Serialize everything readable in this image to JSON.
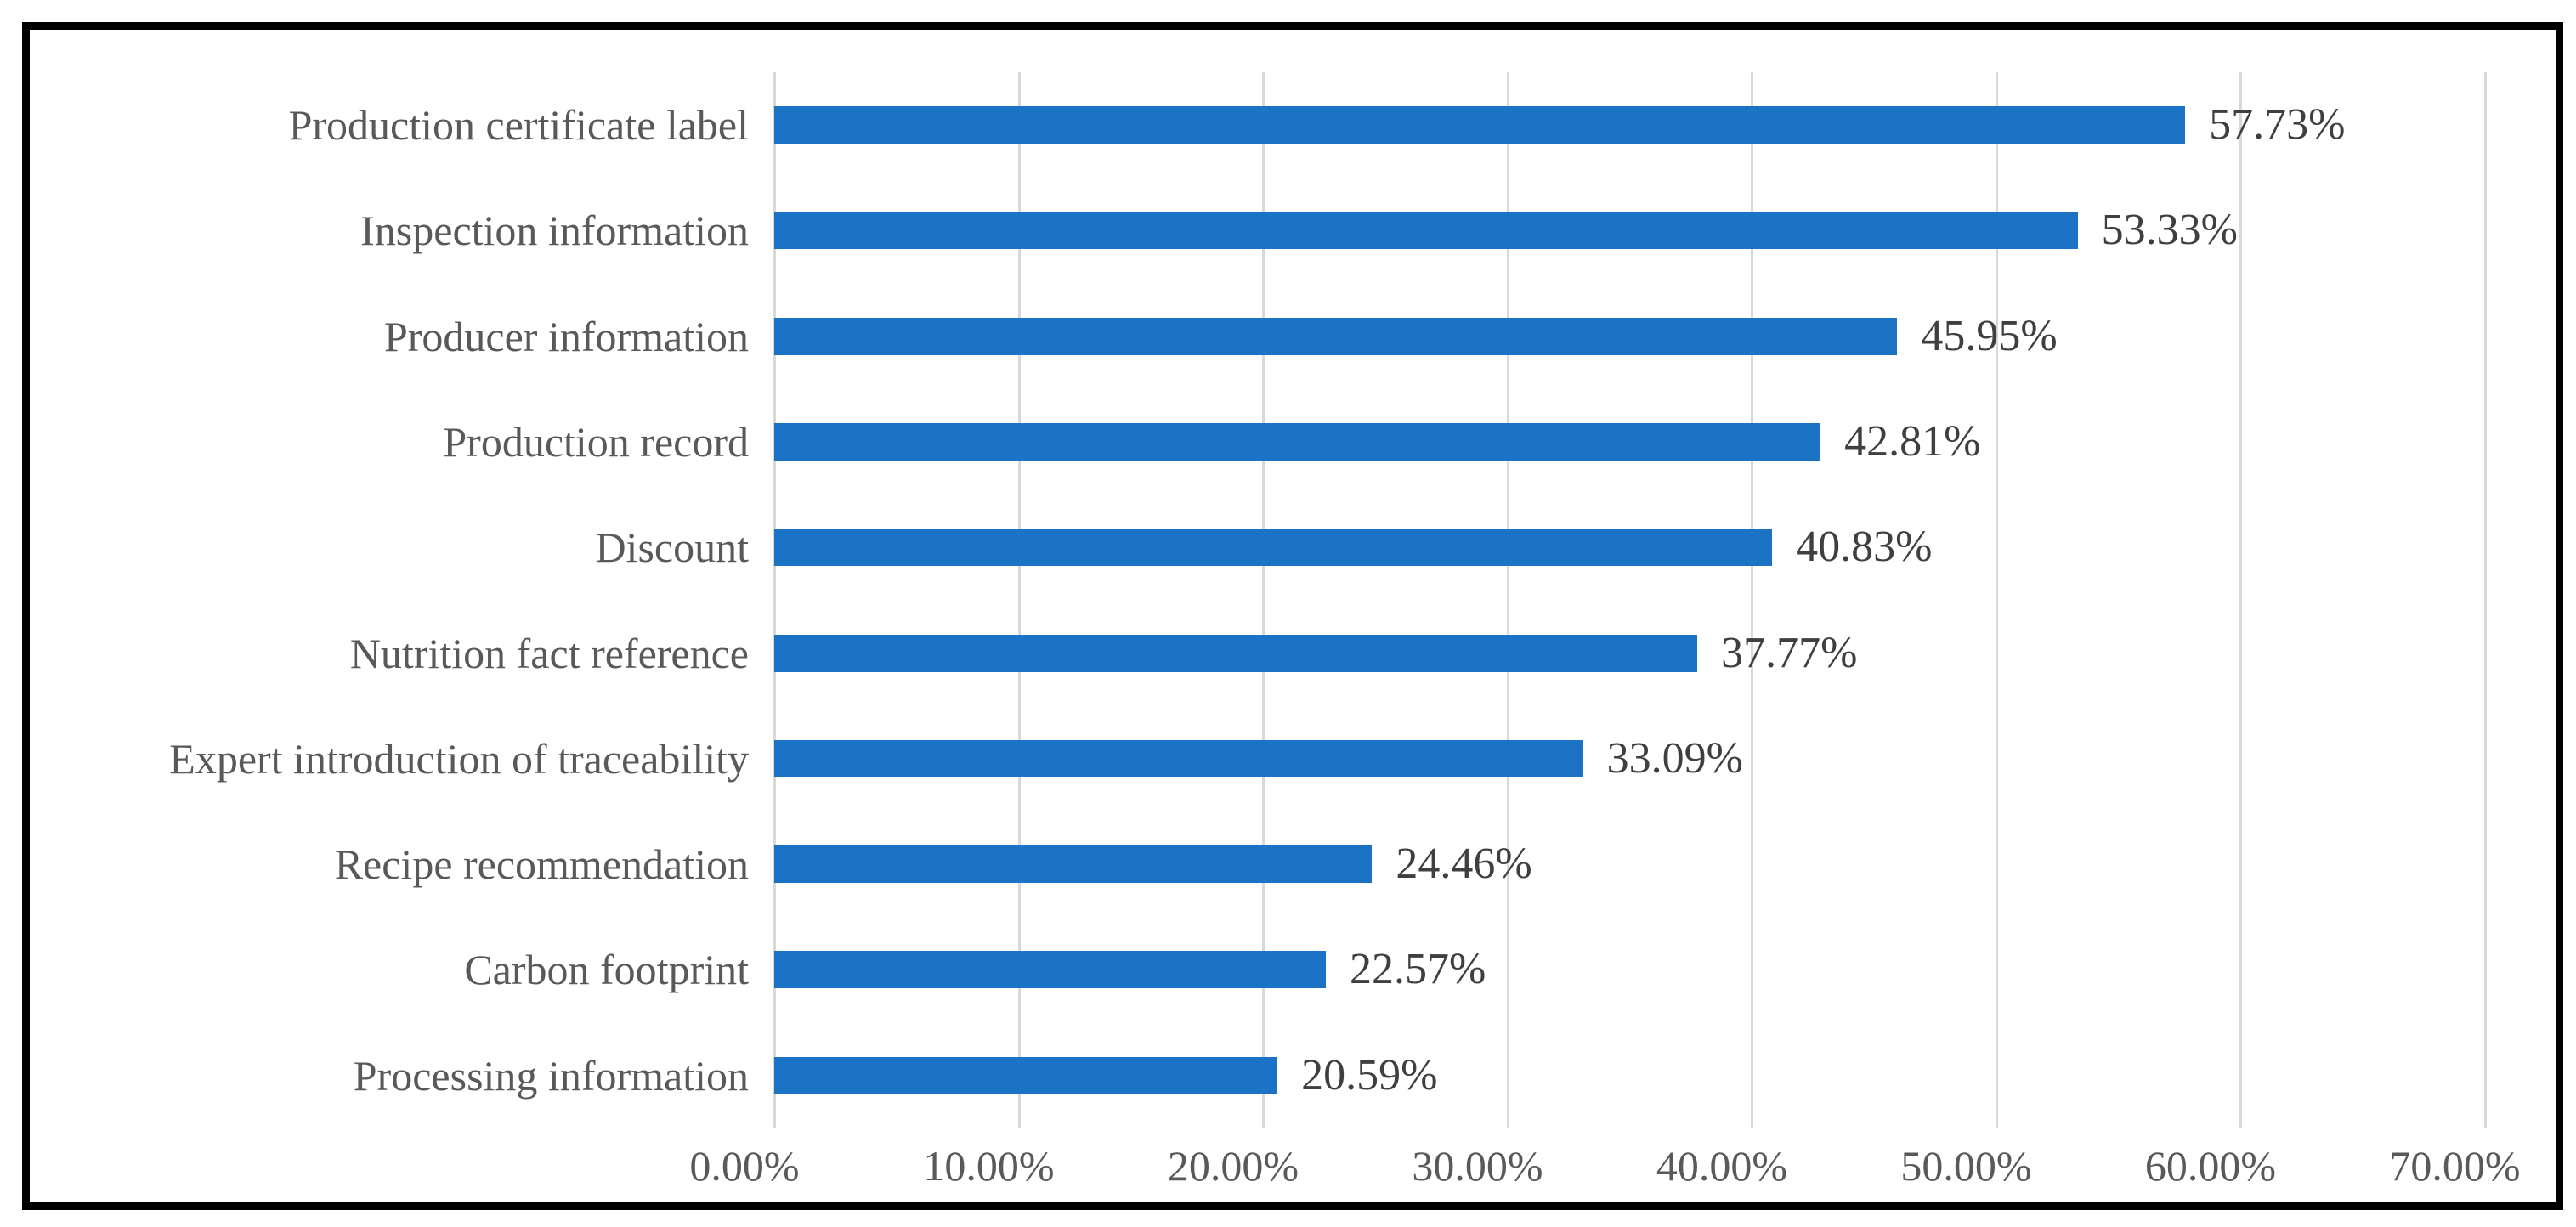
{
  "chart_data": {
    "type": "bar",
    "orientation": "horizontal",
    "title": "",
    "xlabel": "",
    "ylabel": "",
    "categories": [
      "Production certificate label",
      "Inspection information",
      "Producer information",
      "Production record",
      "Discount",
      "Nutrition fact reference",
      "Expert introduction of traceability",
      "Recipe recommendation",
      "Carbon footprint",
      "Processing information"
    ],
    "values": [
      57.73,
      53.33,
      45.95,
      42.81,
      40.83,
      37.77,
      33.09,
      24.46,
      22.57,
      20.59
    ],
    "value_labels": [
      "57.73%",
      "53.33%",
      "45.95%",
      "42.81%",
      "40.83%",
      "37.77%",
      "33.09%",
      "24.46%",
      "22.57%",
      "20.59%"
    ],
    "x_ticks": [
      "0.00%",
      "10.00%",
      "20.00%",
      "30.00%",
      "40.00%",
      "50.00%",
      "60.00%",
      "70.00%"
    ],
    "xlim": [
      0,
      70
    ],
    "grid": "vertical-gridlines-on",
    "legend": "none",
    "colors": {
      "bar": "#1C73C5",
      "gridline": "#D9D9D9",
      "value_text": "#3F3F3F",
      "axis_text": "#595959",
      "frame_border": "#000000",
      "background": "#FFFFFF"
    }
  }
}
